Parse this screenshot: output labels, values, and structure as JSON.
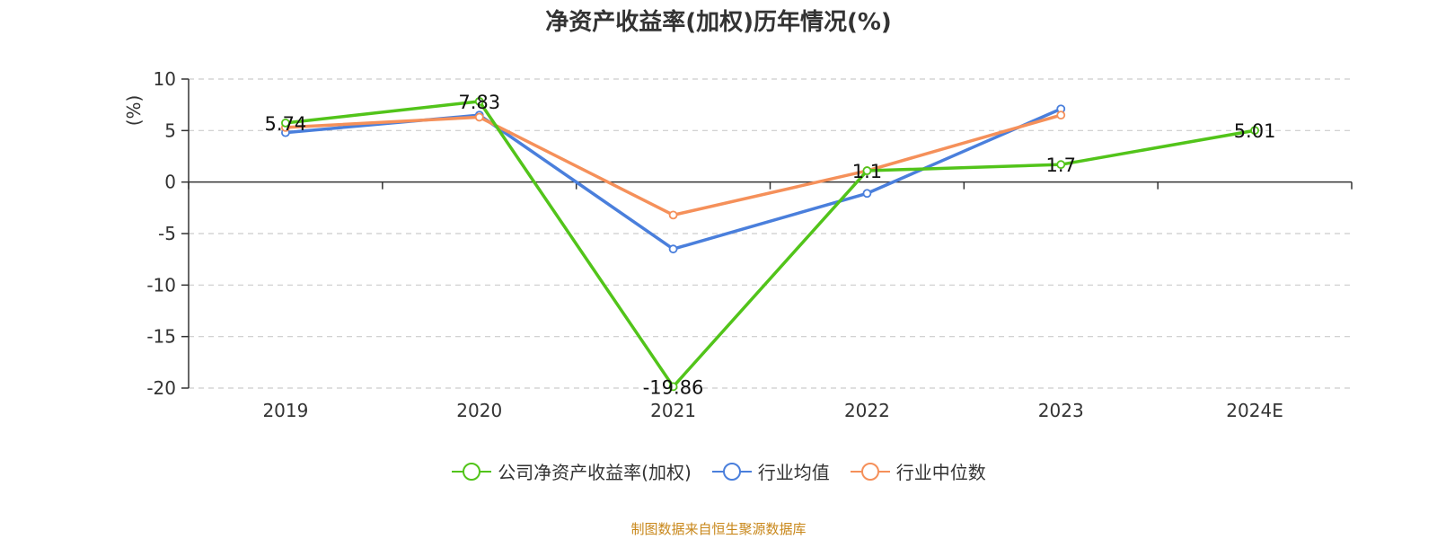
{
  "colors": {
    "company": "#52c41a",
    "industry_avg": "#4a7fdc",
    "industry_median": "#f5905a",
    "axis": "#333333",
    "grid": "#cccccc",
    "ylabel": "#e02020",
    "source": "#c8871a"
  },
  "legend": {
    "company": "公司净资产收益率(加权)",
    "industry_avg": "行业均值",
    "industry_median": "行业中位数"
  },
  "source_note": "制图数据来自恒生聚源数据库",
  "chart_data": {
    "type": "line",
    "title": "净资产收益率(加权)历年情况(%)",
    "xlabel": "",
    "ylabel": "(%)",
    "categories": [
      "2019",
      "2020",
      "2021",
      "2022",
      "2023",
      "2024E"
    ],
    "ylim": [
      -20,
      10
    ],
    "yticks": [
      10,
      5,
      0,
      -5,
      -10,
      -15,
      -20
    ],
    "grid": true,
    "legend_position": "bottom",
    "series": [
      {
        "key": "company",
        "name": "公司净资产收益率(加权)",
        "values": [
          5.74,
          7.83,
          -19.86,
          1.1,
          1.7,
          5.01
        ],
        "labels": [
          "5.74",
          "7.83",
          "-19.86",
          "1.1",
          "1.7",
          "5.01"
        ]
      },
      {
        "key": "industry_avg",
        "name": "行业均值",
        "values": [
          4.8,
          6.5,
          -6.5,
          -1.1,
          7.1,
          null
        ]
      },
      {
        "key": "industry_median",
        "name": "行业中位数",
        "values": [
          5.3,
          6.3,
          -3.2,
          1.1,
          6.5,
          null
        ]
      }
    ]
  }
}
